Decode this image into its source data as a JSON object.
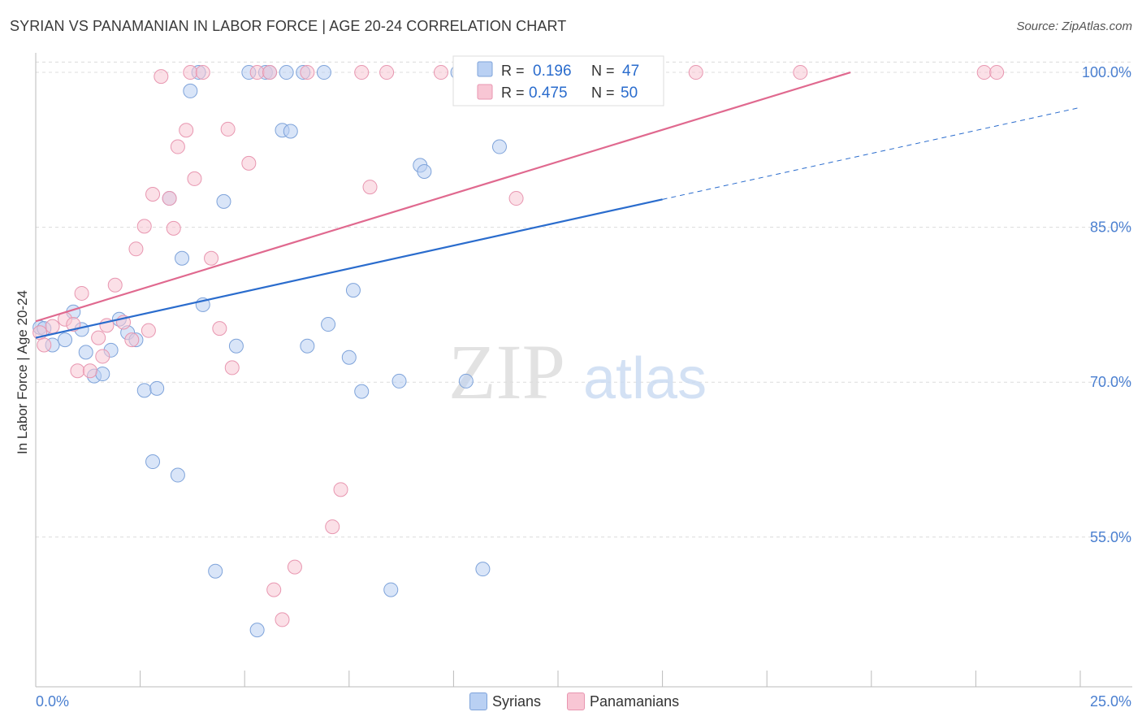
{
  "header": {
    "title": "SYRIAN VS PANAMANIAN IN LABOR FORCE | AGE 20-24 CORRELATION CHART",
    "source": "Source: ZipAtlas.com"
  },
  "watermark": {
    "zip": "ZIP",
    "atlas": "atlas"
  },
  "colors": {
    "syrians_fill": "#b9d0f3",
    "syrians_stroke": "#7ea3da",
    "syrians_line": "#2a6ccd",
    "panamanians_fill": "#f8c6d4",
    "panamanians_stroke": "#e896b0",
    "panamanians_line": "#e0698f",
    "tick_label": "#4a7fd0"
  },
  "legend": {
    "syrians": {
      "r_label": "R =",
      "r_value": "0.196",
      "n_label": "N =",
      "n_value": "47"
    },
    "panamanians": {
      "r_label": "R =",
      "r_value": "0.475",
      "n_label": "N =",
      "n_value": "50"
    }
  },
  "chart_data": {
    "type": "scatter",
    "title": "SYRIAN VS PANAMANIAN IN LABOR FORCE | AGE 20-24 CORRELATION CHART",
    "xlabel": "",
    "ylabel": "In Labor Force | Age 20-24",
    "xlim": [
      0,
      25
    ],
    "ylim": [
      40.5,
      101.5
    ],
    "x_tick_labels": [
      "0.0%",
      "25.0%"
    ],
    "y_ticks": [
      55,
      70,
      85,
      100
    ],
    "y_tick_labels": [
      "55.0%",
      "70.0%",
      "85.0%",
      "100.0%"
    ],
    "grid": true,
    "series": [
      {
        "name": "Syrians",
        "r": 0.196,
        "n": 47,
        "trend": {
          "x0": 0,
          "y0": 74.3,
          "x1": 15,
          "y1": 87.7,
          "dash_x1": 25,
          "dash_y1": 96.6
        },
        "points": [
          [
            0.1,
            75.3
          ],
          [
            0.2,
            75.2
          ],
          [
            0.4,
            73.6
          ],
          [
            0.7,
            74.1
          ],
          [
            0.9,
            76.8
          ],
          [
            1.1,
            75.1
          ],
          [
            1.2,
            72.9
          ],
          [
            1.4,
            70.6
          ],
          [
            1.6,
            70.8
          ],
          [
            1.8,
            73.1
          ],
          [
            2.0,
            76.1
          ],
          [
            2.2,
            74.8
          ],
          [
            2.4,
            74.1
          ],
          [
            2.6,
            69.2
          ],
          [
            2.9,
            69.4
          ],
          [
            2.8,
            62.3
          ],
          [
            3.2,
            87.8
          ],
          [
            3.4,
            61.0
          ],
          [
            3.5,
            82.0
          ],
          [
            3.7,
            98.2
          ],
          [
            3.9,
            100
          ],
          [
            4.0,
            77.5
          ],
          [
            4.5,
            87.5
          ],
          [
            4.3,
            51.7
          ],
          [
            4.8,
            73.5
          ],
          [
            5.1,
            100
          ],
          [
            5.5,
            100
          ],
          [
            5.6,
            100
          ],
          [
            5.3,
            46.0
          ],
          [
            5.9,
            94.4
          ],
          [
            6.0,
            100
          ],
          [
            6.1,
            94.3
          ],
          [
            6.4,
            100
          ],
          [
            6.5,
            73.5
          ],
          [
            6.9,
            100
          ],
          [
            7.0,
            75.6
          ],
          [
            7.5,
            72.4
          ],
          [
            7.6,
            78.9
          ],
          [
            7.8,
            69.1
          ],
          [
            8.5,
            49.9
          ],
          [
            8.7,
            70.1
          ],
          [
            9.2,
            91.0
          ],
          [
            9.3,
            90.4
          ],
          [
            10.1,
            100
          ],
          [
            10.3,
            70.1
          ],
          [
            10.7,
            51.9
          ],
          [
            11.1,
            92.8
          ]
        ]
      },
      {
        "name": "Panamanians",
        "r": 0.475,
        "n": 50,
        "trend": {
          "x0": 0,
          "y0": 75.9,
          "x1": 19.5,
          "y1": 100
        },
        "points": [
          [
            0.1,
            74.8
          ],
          [
            0.2,
            73.6
          ],
          [
            0.4,
            75.4
          ],
          [
            0.7,
            76.1
          ],
          [
            0.9,
            75.6
          ],
          [
            1.0,
            71.1
          ],
          [
            1.1,
            78.6
          ],
          [
            1.3,
            71.1
          ],
          [
            1.5,
            74.3
          ],
          [
            1.6,
            72.5
          ],
          [
            1.7,
            75.5
          ],
          [
            1.9,
            79.4
          ],
          [
            2.1,
            75.8
          ],
          [
            2.3,
            74.1
          ],
          [
            2.4,
            82.9
          ],
          [
            2.6,
            85.1
          ],
          [
            2.7,
            75.0
          ],
          [
            2.8,
            88.2
          ],
          [
            3.0,
            99.6
          ],
          [
            3.2,
            87.8
          ],
          [
            3.3,
            84.9
          ],
          [
            3.4,
            92.8
          ],
          [
            3.6,
            94.4
          ],
          [
            3.7,
            100
          ],
          [
            3.8,
            89.7
          ],
          [
            4.0,
            100
          ],
          [
            4.2,
            82.0
          ],
          [
            4.4,
            75.2
          ],
          [
            4.7,
            71.4
          ],
          [
            4.6,
            94.5
          ],
          [
            5.1,
            91.2
          ],
          [
            5.3,
            100
          ],
          [
            5.6,
            100
          ],
          [
            5.7,
            49.9
          ],
          [
            5.9,
            47.0
          ],
          [
            6.2,
            52.1
          ],
          [
            6.5,
            100
          ],
          [
            7.1,
            56.0
          ],
          [
            7.3,
            59.6
          ],
          [
            7.8,
            100
          ],
          [
            8.0,
            88.9
          ],
          [
            8.4,
            100
          ],
          [
            9.7,
            100
          ],
          [
            10.4,
            100
          ],
          [
            11.5,
            87.8
          ],
          [
            14.7,
            100
          ],
          [
            15.8,
            100
          ],
          [
            18.3,
            100
          ],
          [
            22.7,
            100
          ],
          [
            23.0,
            100
          ]
        ]
      }
    ]
  },
  "bottom_legend": {
    "syrians": "Syrians",
    "panamanians": "Panamanians"
  }
}
